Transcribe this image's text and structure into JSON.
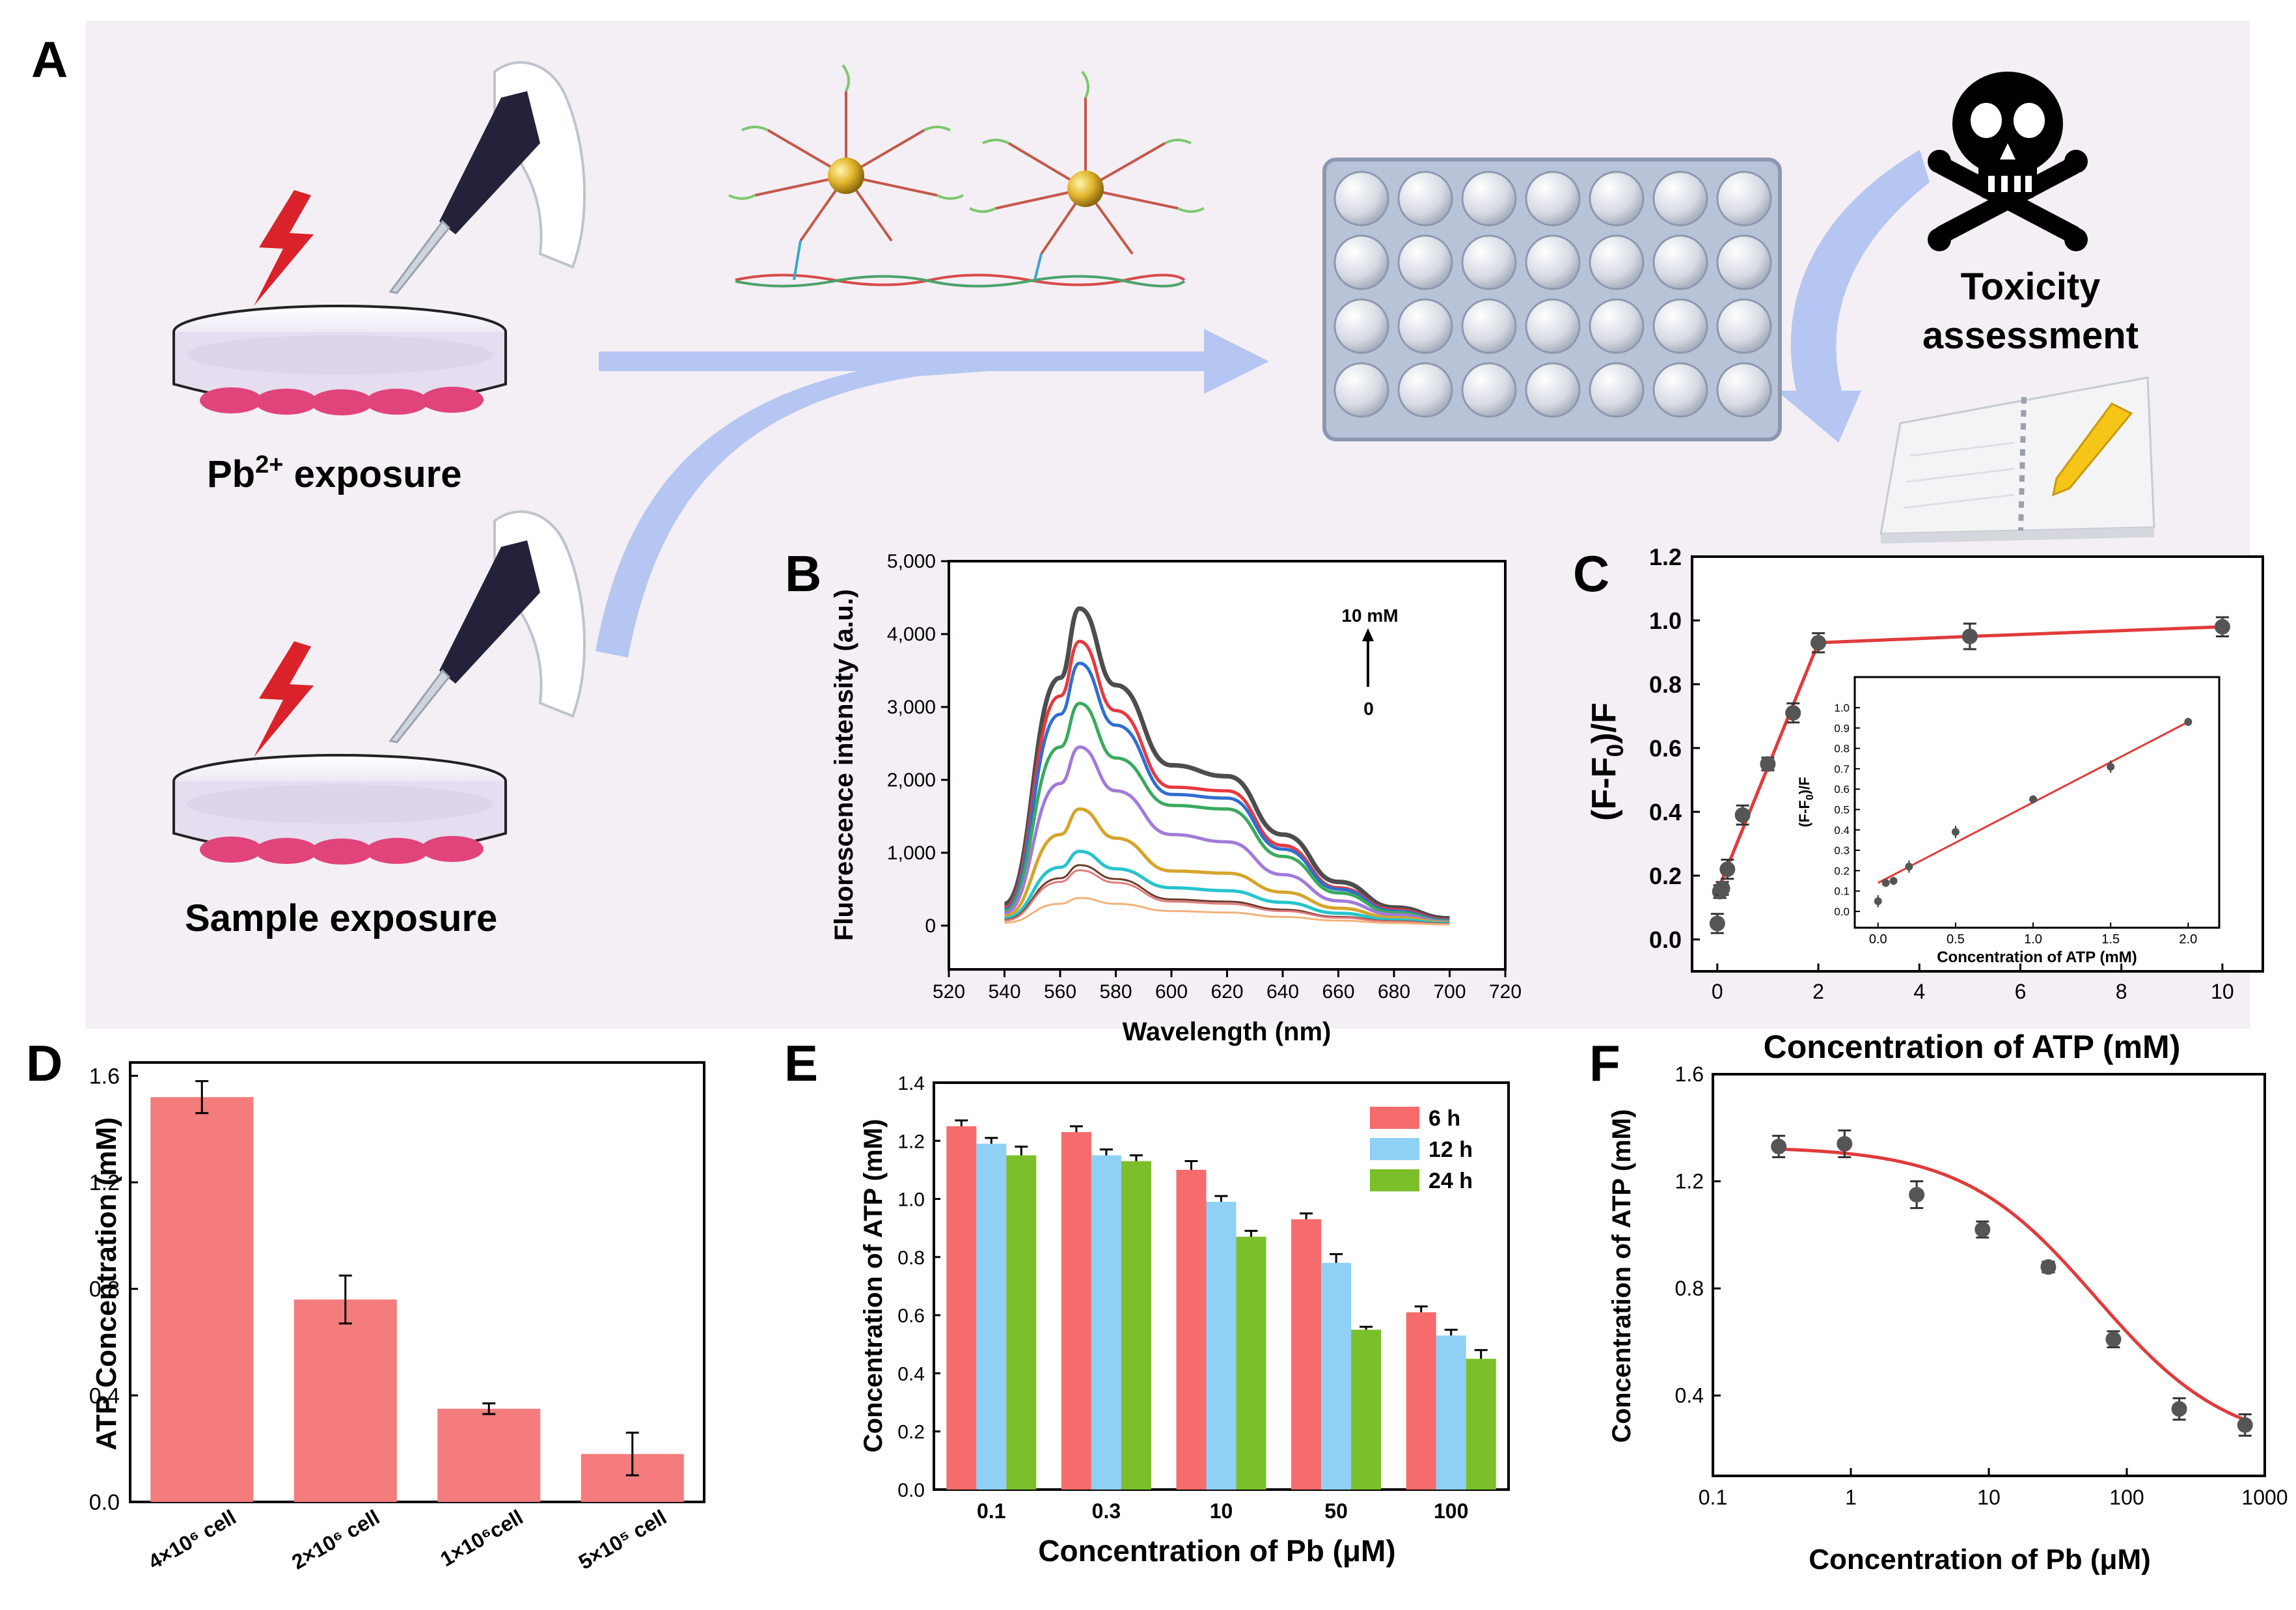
{
  "panelA": {
    "letter": "A",
    "pb_label_main": "Pb",
    "pb_label_sup": "2+",
    "pb_label_rest": " exposure",
    "sample_label": "Sample exposure",
    "toxicity_line1": "Toxicity",
    "toxicity_line2": "assessment",
    "colors": {
      "background": "#f3eff4",
      "arrow": "#b5c6f2",
      "cells": "#e0447a",
      "bolt": "#d9222a",
      "plate": "#b9c3d8"
    }
  },
  "panelB": {
    "letter": "B",
    "ylabel": "Fluorescence intensity (a.u.)",
    "xlabel": "Wavelength (nm)",
    "arrow_top": "10 mM",
    "arrow_bottom": "0",
    "xticks": [
      "520",
      "540",
      "560",
      "580",
      "600",
      "620",
      "640",
      "660",
      "680",
      "700",
      "720"
    ],
    "yticks": [
      "0",
      "1,000",
      "2,000",
      "3,000",
      "4,000",
      "5,000"
    ],
    "chart_data": {
      "type": "line",
      "xlim": [
        520,
        720
      ],
      "ylim": [
        -600,
        5000
      ],
      "peak_x": 567,
      "x": [
        540,
        560,
        567,
        580,
        600,
        620,
        640,
        660,
        680,
        700
      ],
      "series": [
        {
          "color": "#4d4d4d",
          "values": [
            300,
            3400,
            4350,
            3300,
            2200,
            2050,
            1250,
            600,
            250,
            100
          ]
        },
        {
          "color": "#e8393f",
          "values": [
            250,
            3150,
            3900,
            2950,
            1900,
            1850,
            1100,
            520,
            220,
            80
          ]
        },
        {
          "color": "#2f6fd0",
          "values": [
            220,
            2900,
            3600,
            2750,
            1800,
            1750,
            1050,
            500,
            200,
            70
          ]
        },
        {
          "color": "#3aaa5e",
          "values": [
            200,
            2450,
            3050,
            2300,
            1650,
            1600,
            950,
            450,
            180,
            60
          ]
        },
        {
          "color": "#a27ad9",
          "values": [
            170,
            1950,
            2450,
            1850,
            1250,
            1150,
            700,
            340,
            150,
            50
          ]
        },
        {
          "color": "#d6a42b",
          "values": [
            130,
            1250,
            1600,
            1200,
            750,
            720,
            460,
            240,
            110,
            40
          ]
        },
        {
          "color": "#27c4cc",
          "values": [
            100,
            800,
            1020,
            780,
            520,
            480,
            320,
            170,
            80,
            30
          ]
        },
        {
          "color": "#6d3b2c",
          "values": [
            80,
            650,
            830,
            640,
            360,
            330,
            220,
            120,
            60,
            25
          ]
        },
        {
          "color": "#e07b7b",
          "values": [
            70,
            600,
            760,
            590,
            330,
            300,
            200,
            110,
            55,
            20
          ]
        },
        {
          "color": "#f2b27a",
          "values": [
            40,
            300,
            380,
            300,
            200,
            180,
            120,
            70,
            35,
            15
          ]
        }
      ]
    }
  },
  "panelC": {
    "letter": "C",
    "ylabel": "(F-F0)/F",
    "xlabel": "Concentration of ATP (mM)",
    "xticks": [
      "0",
      "2",
      "4",
      "6",
      "8",
      "10"
    ],
    "yticks": [
      "0.0",
      "0.2",
      "0.4",
      "0.6",
      "0.8",
      "1.0",
      "1.2"
    ],
    "inset_ylabel": "(F-F0)/F",
    "inset_xlabel": "Concentration of ATP (mM)",
    "inset_xticks": [
      "0.0",
      "0.5",
      "1.0",
      "1.5",
      "2.0"
    ],
    "inset_yticks": [
      "0.0",
      "0.1",
      "0.2",
      "0.3",
      "0.4",
      "0.5",
      "0.6",
      "0.7",
      "0.8",
      "0.9",
      "1.0"
    ],
    "chart_data": {
      "type": "scatter",
      "xlim": [
        -0.5,
        10.8
      ],
      "ylim": [
        -0.1,
        1.2
      ],
      "points": [
        {
          "x": 0,
          "y": 0.05,
          "err": 0.03
        },
        {
          "x": 0.05,
          "y": 0.15,
          "err": 0.02
        },
        {
          "x": 0.1,
          "y": 0.16,
          "err": 0.02
        },
        {
          "x": 0.2,
          "y": 0.22,
          "err": 0.03
        },
        {
          "x": 0.5,
          "y": 0.39,
          "err": 0.03
        },
        {
          "x": 1.0,
          "y": 0.55,
          "err": 0.02
        },
        {
          "x": 1.5,
          "y": 0.71,
          "err": 0.03
        },
        {
          "x": 2.0,
          "y": 0.93,
          "err": 0.03
        },
        {
          "x": 5.0,
          "y": 0.95,
          "err": 0.04
        },
        {
          "x": 10.0,
          "y": 0.98,
          "err": 0.03
        }
      ],
      "fit": [
        [
          0,
          0.15
        ],
        [
          2,
          0.93
        ],
        [
          5,
          0.95
        ],
        [
          10,
          0.98
        ]
      ],
      "inset": {
        "xlim": [
          -0.15,
          2.2
        ],
        "ylim": [
          -0.08,
          1.15
        ],
        "points": [
          {
            "x": 0,
            "y": 0.05,
            "err": 0.03
          },
          {
            "x": 0.05,
            "y": 0.14,
            "err": 0.02
          },
          {
            "x": 0.1,
            "y": 0.15,
            "err": 0.02
          },
          {
            "x": 0.2,
            "y": 0.22,
            "err": 0.03
          },
          {
            "x": 0.5,
            "y": 0.39,
            "err": 0.03
          },
          {
            "x": 1.0,
            "y": 0.55,
            "err": 0.02
          },
          {
            "x": 1.5,
            "y": 0.71,
            "err": 0.03
          },
          {
            "x": 2.0,
            "y": 0.93,
            "err": 0.02
          }
        ],
        "fit": [
          [
            0,
            0.14
          ],
          [
            2,
            0.93
          ]
        ]
      }
    }
  },
  "panelD": {
    "letter": "D",
    "ylabel": "ATP Concentration (mM)",
    "yticks": [
      "0.0",
      "0.4",
      "0.8",
      "1.2",
      "1.6"
    ],
    "chart_data": {
      "type": "bar",
      "categories": [
        "4×10⁶ cell",
        "2×10⁶ cell",
        "1×10⁶cell",
        "5×10⁵ cell"
      ],
      "values": [
        1.52,
        0.76,
        0.35,
        0.18
      ],
      "errors": [
        0.06,
        0.09,
        0.02,
        0.08
      ],
      "ylim": [
        0,
        1.65
      ],
      "color": "#f47c7c"
    }
  },
  "panelE": {
    "letter": "E",
    "ylabel": "Concentration of ATP (mM)",
    "xlabel": "Concentration of Pb (μM)",
    "yticks": [
      "0.0",
      "0.2",
      "0.4",
      "0.6",
      "0.8",
      "1.0",
      "1.2",
      "1.4"
    ],
    "chart_data": {
      "type": "bar",
      "categories": [
        "0.1",
        "0.3",
        "10",
        "50",
        "100"
      ],
      "ylim": [
        0,
        1.4
      ],
      "series": [
        {
          "name": "6 h",
          "color": "#f66b6b",
          "values": [
            1.25,
            1.23,
            1.1,
            0.93,
            0.61
          ],
          "errors": [
            0.02,
            0.02,
            0.03,
            0.02,
            0.02
          ]
        },
        {
          "name": "12 h",
          "color": "#8fd0f5",
          "values": [
            1.19,
            1.15,
            0.99,
            0.78,
            0.53
          ],
          "errors": [
            0.02,
            0.02,
            0.02,
            0.03,
            0.02
          ]
        },
        {
          "name": "24 h",
          "color": "#7bbf2a",
          "values": [
            1.15,
            1.13,
            0.87,
            0.55,
            0.45
          ],
          "errors": [
            0.03,
            0.02,
            0.02,
            0.01,
            0.03
          ]
        }
      ]
    }
  },
  "panelF": {
    "letter": "F",
    "ylabel": "Concentration of ATP (mM)",
    "xlabel": "Concentration of Pb (μM)",
    "xticks": [
      "0.1",
      "1",
      "10",
      "100",
      "1000"
    ],
    "yticks": [
      "0.4",
      "0.8",
      "1.2",
      "1.6"
    ],
    "chart_data": {
      "type": "scatter",
      "xscale": "log",
      "xlim": [
        0.1,
        1000
      ],
      "ylim": [
        0.1,
        1.6
      ],
      "points": [
        {
          "x": 0.3,
          "y": 1.33,
          "err": 0.04
        },
        {
          "x": 0.9,
          "y": 1.34,
          "err": 0.05
        },
        {
          "x": 3,
          "y": 1.15,
          "err": 0.05
        },
        {
          "x": 9,
          "y": 1.02,
          "err": 0.03
        },
        {
          "x": 27,
          "y": 0.88,
          "err": 0.02
        },
        {
          "x": 80,
          "y": 0.61,
          "err": 0.03
        },
        {
          "x": 240,
          "y": 0.35,
          "err": 0.04
        },
        {
          "x": 720,
          "y": 0.29,
          "err": 0.04
        }
      ],
      "fit": {
        "top": 1.33,
        "bottom": 0.2,
        "ec50": 60,
        "hill": 0.9
      }
    }
  }
}
